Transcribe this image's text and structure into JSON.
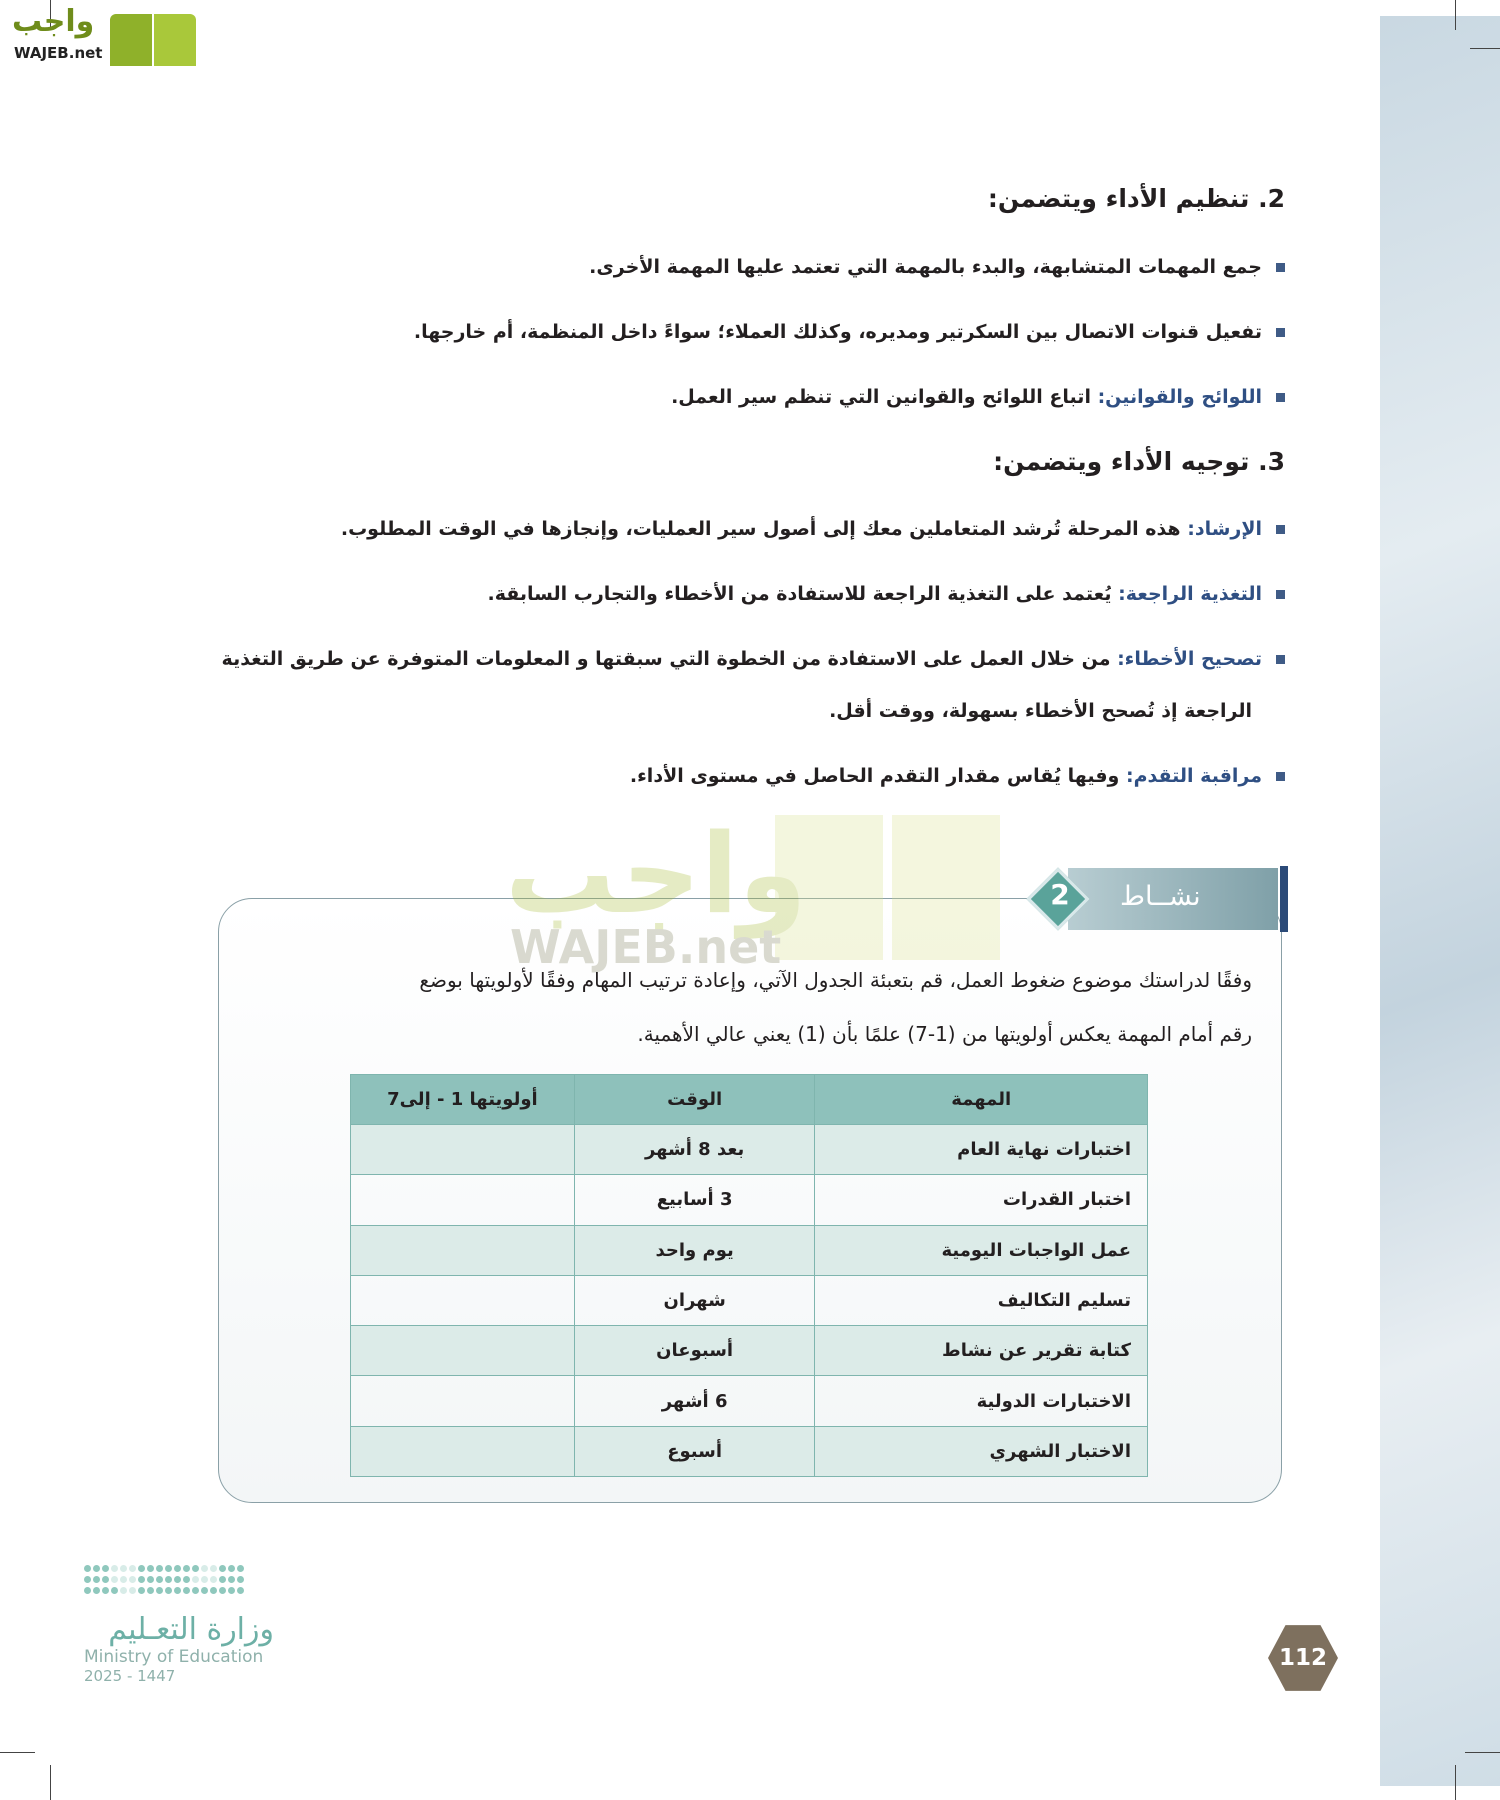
{
  "brand": {
    "logo_ar": "واجب",
    "logo_en": "WAJEB.net"
  },
  "sections": [
    {
      "heading": "2. تنظيم الأداء ويتضمن:",
      "bullets": [
        {
          "key": "",
          "text": "جمع المهمات المتشابهة، والبدء بالمهمة التي تعتمد عليها المهمة الأخرى."
        },
        {
          "key": "",
          "text": "تفعيل قنوات الاتصال بين السكرتير ومديره، وكذلك العملاء؛ سواءً داخل المنظمة، أم خارجها."
        },
        {
          "key": "اللوائح والقوانين:",
          "text": " اتباع اللوائح والقوانين التي تنظم سير العمل."
        }
      ]
    },
    {
      "heading": "3. توجيه الأداء ويتضمن:",
      "bullets": [
        {
          "key": "الإرشاد:",
          "text": " هذه المرحلة تُرشد المتعاملين معك إلى أصول سير العمليات، وإنجازها في الوقت المطلوب."
        },
        {
          "key": "التغذية الراجعة:",
          "text": " يُعتمد على التغذية الراجعة للاستفادة من الأخطاء والتجارب السابقة."
        },
        {
          "key": "تصحيح الأخطاء:",
          "text": " من خلال العمل على الاستفادة من الخطوة التي سبقتها و المعلومات المتوفرة عن طريق التغذية",
          "continuation": "الراجعة إذ تُصحح الأخطاء بسهولة، ووقت أقل."
        },
        {
          "key": "مراقبة التقدم:",
          "text": " وفيها يُقاس مقدار التقدم الحاصل في مستوى الأداء."
        }
      ]
    }
  ],
  "activity": {
    "label": "نشــاط",
    "number": "2",
    "line1": "وفقًا لدراستك موضوع ضغوط العمل، قم بتعبئة الجدول الآتي، وإعادة ترتيب المهام وفقًا لأولويتها بوضع",
    "line2": "رقم أمام المهمة يعكس أولويتها من (1-7) علمًا بأن (1) يعني عالي الأهمية.",
    "table": {
      "headers": [
        "المهمة",
        "الوقت",
        "أولويتها 1 - إلى7"
      ],
      "rows": [
        [
          "اختبارات نهاية العام",
          "بعد 8 أشهر",
          ""
        ],
        [
          "اختبار القدرات",
          "3 أسابيع",
          ""
        ],
        [
          "عمل الواجبات اليومية",
          "يوم واحد",
          ""
        ],
        [
          "تسليم التكاليف",
          "شهران",
          ""
        ],
        [
          "كتابة تقرير عن نشاط",
          "أسبوعان",
          ""
        ],
        [
          "الاختبارات الدولية",
          "6 أشهر",
          ""
        ],
        [
          "الاختبار الشهري",
          "أسبوع",
          ""
        ]
      ]
    }
  },
  "footer": {
    "ministry_ar": "وزارة التعـليم",
    "ministry_en": "Ministry of Education",
    "year": "2025 - 1447",
    "page_number": "112"
  },
  "colors": {
    "keyword": "#2f4f83",
    "table_header": "#8ec1bb",
    "accent": "#5aa39a",
    "page_badge": "#7e705e"
  }
}
